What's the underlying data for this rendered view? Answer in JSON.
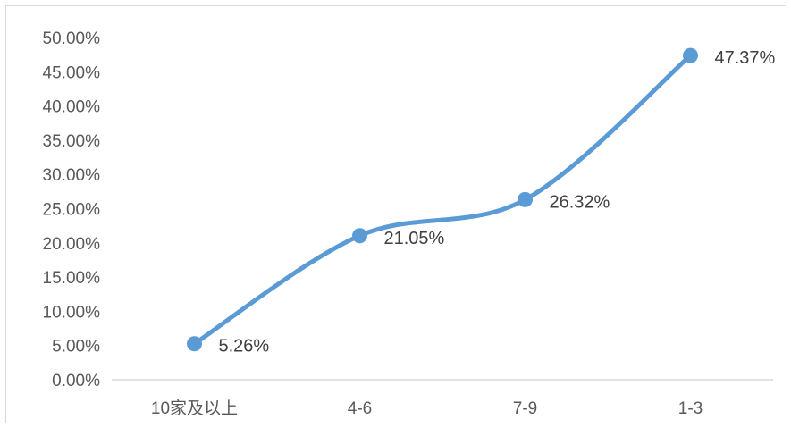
{
  "chart_data": {
    "type": "line",
    "categories": [
      "10家及以上",
      "4-6",
      "7-9",
      "1-3"
    ],
    "series": [
      {
        "values": [
          5.26,
          21.05,
          26.32,
          47.37
        ]
      }
    ],
    "data_labels": [
      "5.26%",
      "21.05%",
      "26.32%",
      "47.37%"
    ],
    "y_ticks": [
      "0.00%",
      "5.00%",
      "10.00%",
      "15.00%",
      "20.00%",
      "25.00%",
      "30.00%",
      "35.00%",
      "40.00%",
      "45.00%",
      "50.00%"
    ],
    "ylim": [
      0,
      50
    ],
    "y_step": 5,
    "grid": false,
    "smooth": true,
    "line_color": "#5b9bd5",
    "axis_color": "#d9d9d9"
  }
}
